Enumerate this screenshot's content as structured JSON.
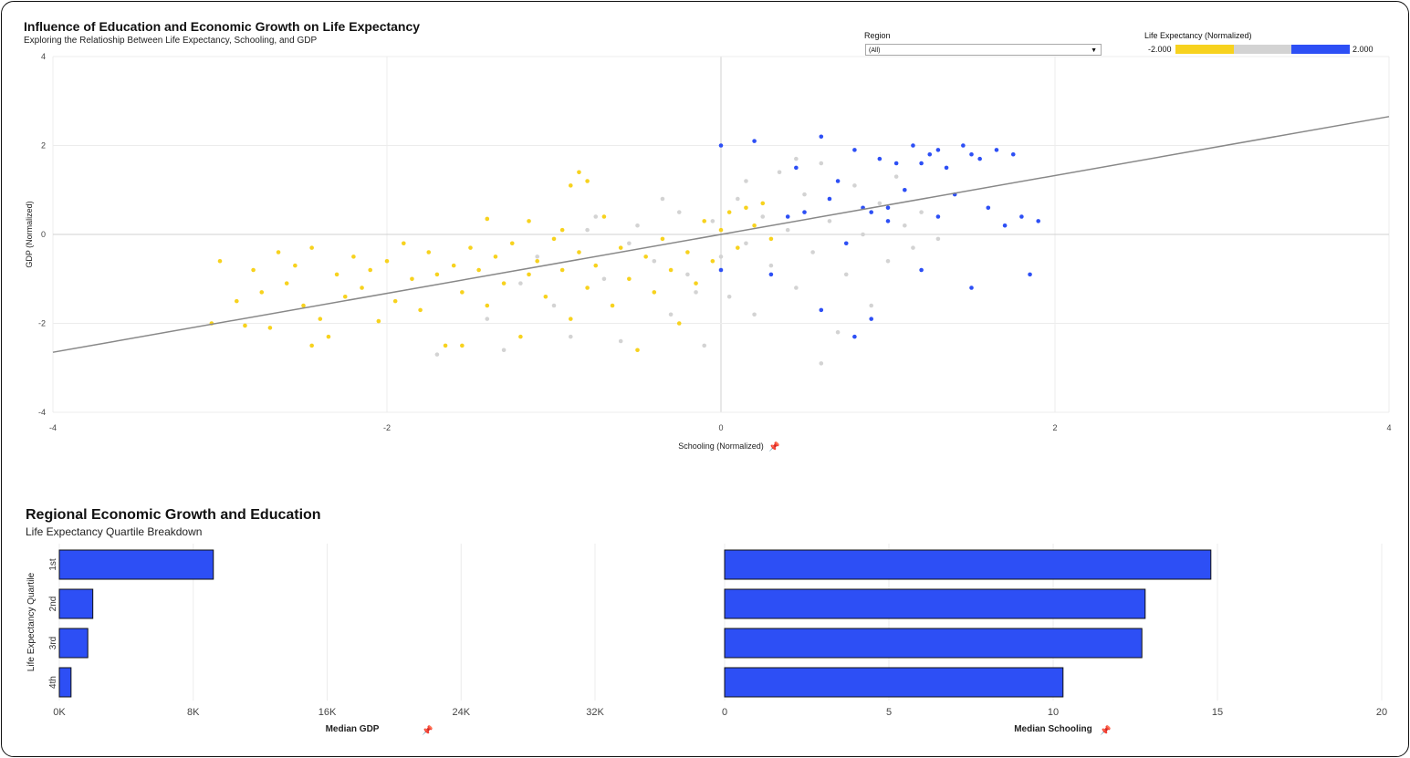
{
  "header": {
    "title": "Influence of Education and Economic Growth on Life Expectancy",
    "subtitle": "Exploring the Relatioship Between Life Expectancy, Schooling, and GDP"
  },
  "filter": {
    "label": "Region",
    "value": "(All)"
  },
  "color_legend": {
    "title": "Life Expectancy (Normalized)",
    "min_label": "-2.000",
    "max_label": "2.000",
    "colors": [
      "#f7d21e",
      "#d3d3d3",
      "#2d4ff5"
    ]
  },
  "pin_icon": "pin-icon",
  "scatter": {
    "xlabel": "Schooling (Normalized)",
    "ylabel": "GDP (Normalized)"
  },
  "section2": {
    "title": "Regional Economic Growth and Education",
    "subtitle": "Life Expectancy Quartile Breakdown",
    "ylabel": "Life Expectancy Quartile",
    "bar_color": "#2d4ff5"
  },
  "chart_data": [
    {
      "type": "scatter",
      "xlabel": "Schooling (Normalized)",
      "ylabel": "GDP (Normalized)",
      "xlim": [
        -4,
        4
      ],
      "ylim": [
        -4,
        4
      ],
      "x_ticks": [
        -4,
        -2,
        0,
        2,
        4
      ],
      "y_ticks": [
        -4,
        -2,
        0,
        2,
        4
      ],
      "grid": true,
      "trend_line": {
        "x": [
          -4,
          4
        ],
        "y": [
          -2.65,
          2.65
        ]
      },
      "series": [
        {
          "color": "#f7d21e",
          "points": [
            [
              -3.0,
              -0.6
            ],
            [
              -2.9,
              -1.5
            ],
            [
              -2.85,
              -2.05
            ],
            [
              -2.8,
              -0.8
            ],
            [
              -2.75,
              -1.3
            ],
            [
              -2.7,
              -2.1
            ],
            [
              -2.65,
              -0.4
            ],
            [
              -2.6,
              -1.1
            ],
            [
              -2.55,
              -0.7
            ],
            [
              -2.5,
              -1.6
            ],
            [
              -2.45,
              -0.3
            ],
            [
              -2.4,
              -1.9
            ],
            [
              -2.35,
              -2.3
            ],
            [
              -2.3,
              -0.9
            ],
            [
              -2.25,
              -1.4
            ],
            [
              -2.2,
              -0.5
            ],
            [
              -2.15,
              -1.2
            ],
            [
              -2.1,
              -0.8
            ],
            [
              -2.05,
              -1.95
            ],
            [
              -2.0,
              -0.6
            ],
            [
              -1.95,
              -1.5
            ],
            [
              -1.9,
              -0.2
            ],
            [
              -1.85,
              -1.0
            ],
            [
              -1.8,
              -1.7
            ],
            [
              -1.75,
              -0.4
            ],
            [
              -1.7,
              -0.9
            ],
            [
              -1.65,
              -2.5
            ],
            [
              -1.6,
              -0.7
            ],
            [
              -1.55,
              -1.3
            ],
            [
              -1.5,
              -0.3
            ],
            [
              -1.45,
              -0.8
            ],
            [
              -1.4,
              -1.6
            ],
            [
              -1.35,
              -0.5
            ],
            [
              -1.3,
              -1.1
            ],
            [
              -1.25,
              -0.2
            ],
            [
              -1.2,
              -2.3
            ],
            [
              -1.15,
              -0.9
            ],
            [
              -1.1,
              -0.6
            ],
            [
              -1.05,
              -1.4
            ],
            [
              -1.0,
              -0.1
            ],
            [
              -0.95,
              -0.8
            ],
            [
              -0.9,
              -1.9
            ],
            [
              -0.85,
              -0.4
            ],
            [
              -0.8,
              -1.2
            ],
            [
              -0.75,
              -0.7
            ],
            [
              -0.7,
              0.4
            ],
            [
              -0.65,
              -1.6
            ],
            [
              -0.6,
              -0.3
            ],
            [
              -0.55,
              -1.0
            ],
            [
              -0.5,
              -2.6
            ],
            [
              -0.45,
              -0.5
            ],
            [
              -0.4,
              -1.3
            ],
            [
              -0.35,
              -0.1
            ],
            [
              -0.3,
              -0.8
            ],
            [
              -0.25,
              -2.0
            ],
            [
              -0.2,
              -0.4
            ],
            [
              -0.15,
              -1.1
            ],
            [
              -0.1,
              0.3
            ],
            [
              -0.05,
              -0.6
            ],
            [
              0.0,
              0.1
            ],
            [
              0.05,
              0.5
            ],
            [
              0.1,
              -0.3
            ],
            [
              0.15,
              0.6
            ],
            [
              0.2,
              0.2
            ],
            [
              0.25,
              0.7
            ],
            [
              0.3,
              -0.1
            ],
            [
              -0.85,
              1.4
            ],
            [
              -0.8,
              1.2
            ],
            [
              -0.9,
              1.1
            ],
            [
              -1.15,
              0.3
            ],
            [
              -0.95,
              0.1
            ],
            [
              -1.4,
              0.35
            ],
            [
              -3.05,
              -2.0
            ],
            [
              -2.45,
              -2.5
            ],
            [
              -1.55,
              -2.5
            ]
          ]
        },
        {
          "color": "#d3d3d3",
          "points": [
            [
              -1.7,
              -2.7
            ],
            [
              -1.4,
              -1.9
            ],
            [
              -1.3,
              -2.6
            ],
            [
              -1.1,
              -0.5
            ],
            [
              -1.0,
              -1.6
            ],
            [
              -0.9,
              -2.3
            ],
            [
              -0.8,
              0.1
            ],
            [
              -0.7,
              -1.0
            ],
            [
              -0.6,
              -2.4
            ],
            [
              -0.5,
              0.2
            ],
            [
              -0.4,
              -0.6
            ],
            [
              -0.3,
              -1.8
            ],
            [
              -0.25,
              0.5
            ],
            [
              -0.2,
              -0.9
            ],
            [
              -0.1,
              -2.5
            ],
            [
              -0.05,
              0.3
            ],
            [
              0.0,
              -0.5
            ],
            [
              0.05,
              -1.4
            ],
            [
              0.1,
              0.8
            ],
            [
              0.15,
              -0.2
            ],
            [
              0.2,
              -1.8
            ],
            [
              0.25,
              0.4
            ],
            [
              0.3,
              -0.7
            ],
            [
              0.35,
              1.4
            ],
            [
              0.4,
              0.1
            ],
            [
              0.45,
              -1.2
            ],
            [
              0.5,
              0.9
            ],
            [
              0.55,
              -0.4
            ],
            [
              0.6,
              1.6
            ],
            [
              0.65,
              0.3
            ],
            [
              0.7,
              -2.2
            ],
            [
              0.75,
              -0.9
            ],
            [
              0.8,
              1.1
            ],
            [
              0.85,
              0.0
            ],
            [
              0.9,
              -1.6
            ],
            [
              0.95,
              0.7
            ],
            [
              1.0,
              -0.6
            ],
            [
              1.05,
              1.3
            ],
            [
              1.1,
              0.2
            ],
            [
              1.15,
              -0.3
            ],
            [
              1.2,
              0.5
            ],
            [
              1.3,
              -0.1
            ],
            [
              0.6,
              -2.9
            ],
            [
              -0.15,
              -1.3
            ],
            [
              -0.35,
              0.8
            ],
            [
              0.15,
              1.2
            ],
            [
              0.45,
              1.7
            ],
            [
              -0.55,
              -0.2
            ],
            [
              -1.2,
              -1.1
            ],
            [
              -0.75,
              0.4
            ]
          ]
        },
        {
          "color": "#2d4ff5",
          "points": [
            [
              0.0,
              2.0
            ],
            [
              0.2,
              2.1
            ],
            [
              0.45,
              1.5
            ],
            [
              0.5,
              0.5
            ],
            [
              0.6,
              2.2
            ],
            [
              0.7,
              1.2
            ],
            [
              0.75,
              -0.2
            ],
            [
              0.8,
              1.9
            ],
            [
              0.85,
              0.6
            ],
            [
              0.9,
              -1.9
            ],
            [
              0.95,
              1.7
            ],
            [
              1.0,
              0.3
            ],
            [
              1.05,
              1.6
            ],
            [
              1.1,
              1.0
            ],
            [
              1.15,
              2.0
            ],
            [
              1.2,
              -0.8
            ],
            [
              1.25,
              1.8
            ],
            [
              1.3,
              0.4
            ],
            [
              1.35,
              1.5
            ],
            [
              1.4,
              0.9
            ],
            [
              1.45,
              2.0
            ],
            [
              1.5,
              -1.2
            ],
            [
              1.55,
              1.7
            ],
            [
              1.6,
              0.6
            ],
            [
              1.65,
              1.9
            ],
            [
              1.7,
              0.2
            ],
            [
              1.75,
              1.8
            ],
            [
              1.8,
              0.4
            ],
            [
              1.85,
              -0.9
            ],
            [
              1.9,
              0.3
            ],
            [
              0.6,
              -1.7
            ],
            [
              0.8,
              -2.3
            ],
            [
              0.3,
              -0.9
            ],
            [
              0.0,
              -0.8
            ],
            [
              0.4,
              0.4
            ],
            [
              0.65,
              0.8
            ],
            [
              0.9,
              0.5
            ],
            [
              1.2,
              1.6
            ],
            [
              1.5,
              1.8
            ],
            [
              1.0,
              0.6
            ],
            [
              1.3,
              1.9
            ]
          ]
        }
      ]
    },
    {
      "type": "bar",
      "orientation": "horizontal",
      "categories": [
        "1st",
        "2nd",
        "3rd",
        "4th"
      ],
      "values": [
        9200,
        2000,
        1700,
        700
      ],
      "xlabel": "Median GDP",
      "ylabel": "Life Expectancy Quartile",
      "xlim": [
        0,
        35000
      ],
      "x_ticks": [
        0,
        8000,
        16000,
        24000,
        32000
      ],
      "x_tick_labels": [
        "0K",
        "8K",
        "16K",
        "24K",
        "32K"
      ]
    },
    {
      "type": "bar",
      "orientation": "horizontal",
      "categories": [
        "1st",
        "2nd",
        "3rd",
        "4th"
      ],
      "values": [
        14.8,
        12.8,
        12.7,
        10.3
      ],
      "xlabel": "Median Schooling",
      "xlim": [
        0,
        20
      ],
      "x_ticks": [
        0,
        5,
        10,
        15,
        20
      ],
      "x_tick_labels": [
        "0",
        "5",
        "10",
        "15",
        "20"
      ]
    }
  ]
}
